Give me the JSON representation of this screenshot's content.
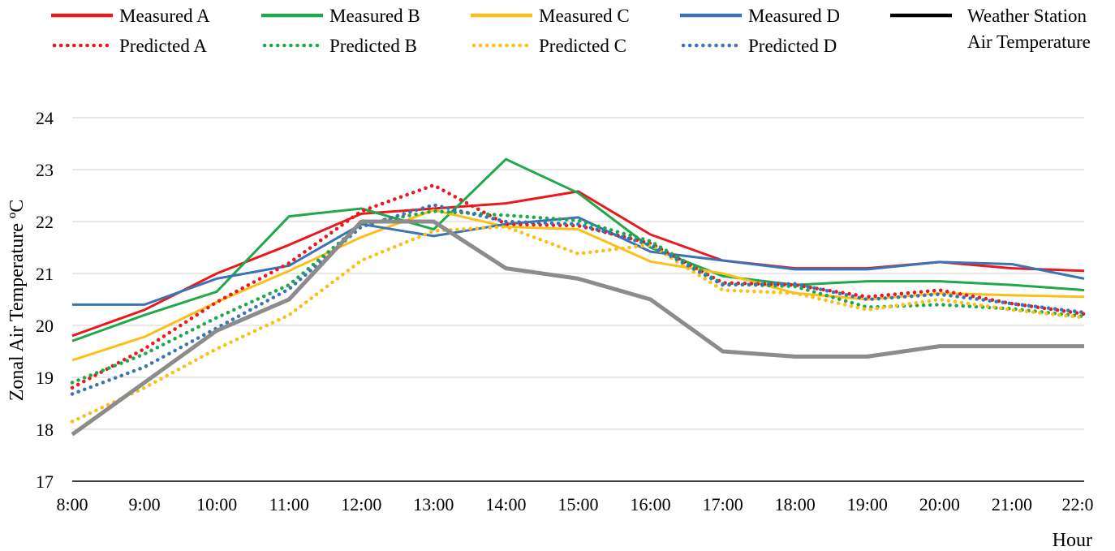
{
  "chart_data": {
    "type": "line",
    "xlabel": "Hour",
    "ylabel": "Zonal Air Temperature ºC",
    "ylim": [
      17,
      24
    ],
    "yticks": [
      "17",
      "18",
      "19",
      "20",
      "21",
      "22",
      "23",
      "24"
    ],
    "grid": true,
    "legend_position": "top",
    "categories": [
      "8:00",
      "9:00",
      "10:00",
      "11:00",
      "12:00",
      "13:00",
      "14:00",
      "15:00",
      "16:00",
      "17:00",
      "18:00",
      "19:00",
      "20:00",
      "21:00",
      "22:0"
    ],
    "series": [
      {
        "name": "Measured A",
        "style": "solid",
        "color": "#e8191f",
        "width": 3,
        "values": [
          19.8,
          20.3,
          21.0,
          21.55,
          22.15,
          22.25,
          22.35,
          22.58,
          21.75,
          21.25,
          21.1,
          21.1,
          21.22,
          21.1,
          21.05
        ]
      },
      {
        "name": "Measured B",
        "style": "solid",
        "color": "#21a84a",
        "width": 3,
        "values": [
          19.7,
          20.2,
          20.65,
          22.1,
          22.25,
          21.85,
          23.2,
          22.55,
          21.5,
          20.95,
          20.78,
          20.85,
          20.85,
          20.78,
          20.68
        ]
      },
      {
        "name": "Measured C",
        "style": "solid",
        "color": "#fbbf16",
        "width": 3,
        "values": [
          19.33,
          19.78,
          20.45,
          21.05,
          21.7,
          22.22,
          21.9,
          21.85,
          21.23,
          21.0,
          20.62,
          20.5,
          20.62,
          20.58,
          20.55
        ]
      },
      {
        "name": "Measured D",
        "style": "solid",
        "color": "#3a74b5",
        "width": 3,
        "values": [
          20.4,
          20.4,
          20.9,
          21.15,
          21.95,
          21.72,
          21.95,
          22.08,
          21.42,
          21.25,
          21.08,
          21.08,
          21.22,
          21.18,
          20.9
        ]
      },
      {
        "name": "Predicted A",
        "style": "dotted",
        "color": "#e8191f",
        "width": 4.5,
        "values": [
          18.8,
          19.55,
          20.45,
          21.2,
          22.2,
          22.7,
          21.95,
          21.92,
          21.58,
          20.82,
          20.78,
          20.55,
          20.68,
          20.42,
          20.22
        ]
      },
      {
        "name": "Predicted B",
        "style": "dotted",
        "color": "#21a84a",
        "width": 4.5,
        "values": [
          18.9,
          19.45,
          20.15,
          20.78,
          21.95,
          22.2,
          22.12,
          22.02,
          21.62,
          20.8,
          20.75,
          20.35,
          20.4,
          20.32,
          20.17
        ]
      },
      {
        "name": "Predicted C",
        "style": "dotted",
        "color": "#fbbf16",
        "width": 4.5,
        "values": [
          18.15,
          18.8,
          19.55,
          20.2,
          21.25,
          21.82,
          21.9,
          21.38,
          21.55,
          20.68,
          20.62,
          20.3,
          20.5,
          20.3,
          20.15
        ]
      },
      {
        "name": "Predicted D",
        "style": "dotted",
        "color": "#3a74b5",
        "width": 4.5,
        "values": [
          18.68,
          19.2,
          19.95,
          20.7,
          21.9,
          22.32,
          22.0,
          21.95,
          21.55,
          20.78,
          20.8,
          20.5,
          20.6,
          20.42,
          20.25
        ]
      },
      {
        "name": "Weather Station Air Temperature",
        "style": "solid",
        "color": "#8c8c8c",
        "legend_color": "#000000",
        "width": 5,
        "values": [
          17.9,
          18.9,
          19.9,
          20.5,
          22.0,
          22.0,
          21.1,
          20.9,
          20.5,
          19.5,
          19.4,
          19.4,
          19.6,
          19.6,
          19.6
        ]
      }
    ],
    "legend": [
      {
        "label": "Measured A",
        "color": "#e8191f",
        "style": "solid"
      },
      {
        "label": "Measured B",
        "color": "#21a84a",
        "style": "solid"
      },
      {
        "label": "Measured C",
        "color": "#fbbf16",
        "style": "solid"
      },
      {
        "label": "Measured D",
        "color": "#3a74b5",
        "style": "solid"
      },
      {
        "label": "Weather Station",
        "label2": "Air Temperature",
        "color": "#000000",
        "style": "solid"
      },
      {
        "label": "Predicted A",
        "color": "#e8191f",
        "style": "dotted"
      },
      {
        "label": "Predicted B",
        "color": "#21a84a",
        "style": "dotted"
      },
      {
        "label": "Predicted C",
        "color": "#fbbf16",
        "style": "dotted"
      },
      {
        "label": "Predicted D",
        "color": "#3a74b5",
        "style": "dotted"
      }
    ]
  }
}
